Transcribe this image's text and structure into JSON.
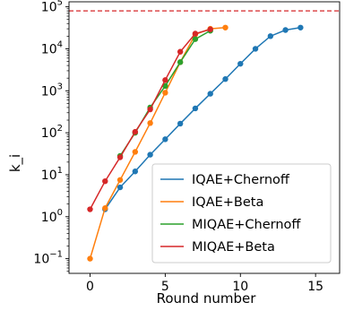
{
  "chart_data": {
    "type": "line",
    "title": "",
    "xlabel": "Round number",
    "ylabel": "k_i",
    "xlim": [
      -1.4,
      16.6
    ],
    "ylim_log10": [
      -1.35,
      5.12
    ],
    "yscale": "log",
    "x_ticks": [
      0,
      5,
      10,
      15
    ],
    "y_ticks": [
      {
        "exp": -1,
        "base": "10",
        "sup": "−1"
      },
      {
        "exp": 0,
        "base": "10",
        "sup": "0"
      },
      {
        "exp": 1,
        "base": "10",
        "sup": "1"
      },
      {
        "exp": 2,
        "base": "10",
        "sup": "2"
      },
      {
        "exp": 3,
        "base": "10",
        "sup": "3"
      },
      {
        "exp": 4,
        "base": "10",
        "sup": "4"
      },
      {
        "exp": 5,
        "base": "10",
        "sup": "5"
      }
    ],
    "reference_line": {
      "y": 80000,
      "color": "#d62728",
      "style": "dashed"
    },
    "grid": false,
    "legend_position": "lower-right",
    "series": [
      {
        "name": "IQAE+Chernoff",
        "color": "#1f77b4",
        "x": [
          1,
          2,
          3,
          4,
          5,
          6,
          7,
          8,
          9,
          10,
          11,
          12,
          13,
          14
        ],
        "y": [
          1.5,
          5,
          12,
          30,
          70,
          165,
          380,
          850,
          1900,
          4400,
          10000,
          20000,
          28000,
          32000
        ]
      },
      {
        "name": "IQAE+Beta",
        "color": "#ff7f0e",
        "x": [
          0,
          1,
          2,
          3,
          4,
          5,
          6,
          7,
          8,
          9
        ],
        "y": [
          0.1,
          1.6,
          7.5,
          35,
          170,
          900,
          4800,
          22000,
          30000,
          32000
        ]
      },
      {
        "name": "MIQAE+Chernoff",
        "color": "#2ca02c",
        "x": [
          2,
          3,
          4,
          5,
          6,
          7,
          8
        ],
        "y": [
          28,
          100,
          400,
          1300,
          4800,
          17000,
          27000
        ]
      },
      {
        "name": "MIQAE+Beta",
        "color": "#d62728",
        "x": [
          0,
          1,
          2,
          3,
          4,
          5,
          6,
          7,
          8
        ],
        "y": [
          1.5,
          7,
          26,
          105,
          360,
          1800,
          8500,
          23000,
          29000
        ]
      }
    ]
  }
}
